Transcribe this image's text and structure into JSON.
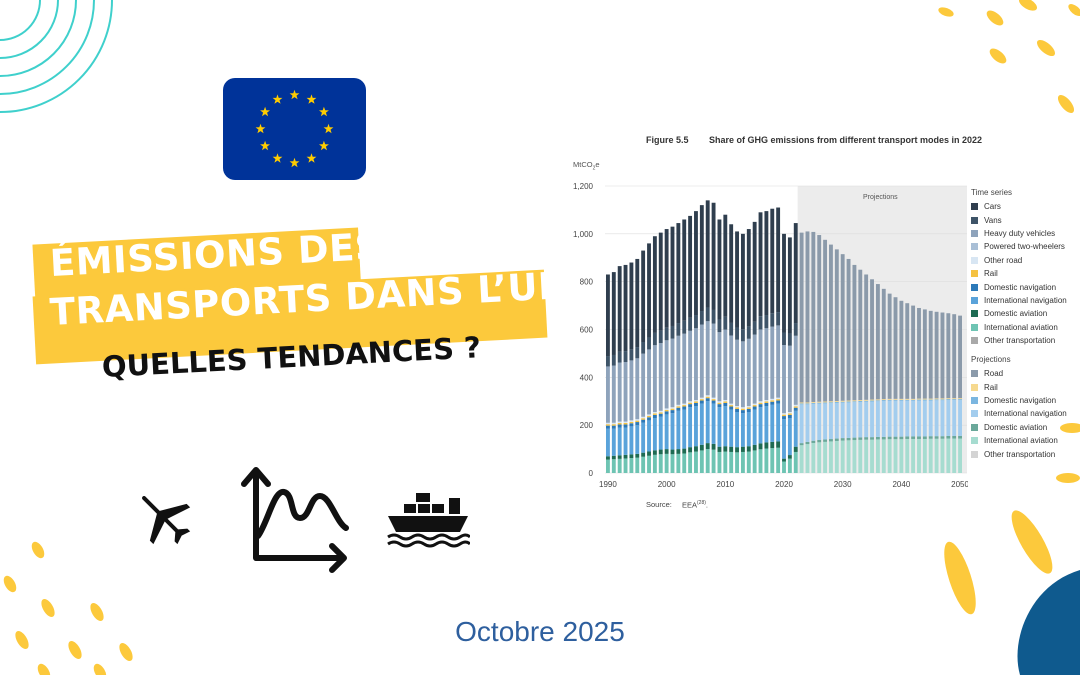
{
  "header": {
    "title_line1": "ÉMISSIONS DES",
    "title_line2": "TRANSPORTS DANS L’UE",
    "subtitle": "QUELLES TENDANCES ?"
  },
  "date": "Octobre 2025",
  "icons": [
    "eu-flag-icon",
    "airplane-icon",
    "trend-chart-icon",
    "cargo-ship-icon"
  ],
  "colors": {
    "accent_yellow": "#fcc93c",
    "deco_blue": "#0f5a8e",
    "teal_line": "#3fd0cc",
    "eu_blue": "#003399",
    "eu_star": "#ffcc00",
    "date_text": "#2e5f9e"
  },
  "chart_data": {
    "type": "bar",
    "figure_label": "Figure 5.5",
    "title": "Share of GHG emissions from different transport modes in 2022",
    "ylabel": "MtCO2e",
    "ylim": [
      0,
      1200
    ],
    "yticks": [
      "0",
      "200",
      "400",
      "600",
      "800",
      "1,000",
      "1,200"
    ],
    "xticks": [
      "1990",
      "2000",
      "2010",
      "2020",
      "2030",
      "2040",
      "2050"
    ],
    "projection_label": "Projections",
    "projection_start": 2023,
    "source_label": "Source:",
    "source_text": "EEA",
    "years": [
      1990,
      1991,
      1992,
      1993,
      1994,
      1995,
      1996,
      1997,
      1998,
      1999,
      2000,
      2001,
      2002,
      2003,
      2004,
      2005,
      2006,
      2007,
      2008,
      2009,
      2010,
      2011,
      2012,
      2013,
      2014,
      2015,
      2016,
      2017,
      2018,
      2019,
      2020,
      2021,
      2022,
      2023,
      2024,
      2025,
      2026,
      2027,
      2028,
      2029,
      2030,
      2031,
      2032,
      2033,
      2034,
      2035,
      2036,
      2037,
      2038,
      2039,
      2040,
      2041,
      2042,
      2043,
      2044,
      2045,
      2046,
      2047,
      2048,
      2049,
      2050
    ],
    "totals": [
      830,
      840,
      865,
      870,
      880,
      895,
      930,
      960,
      990,
      1005,
      1020,
      1030,
      1045,
      1060,
      1075,
      1095,
      1120,
      1140,
      1130,
      1060,
      1080,
      1040,
      1010,
      1000,
      1020,
      1050,
      1090,
      1095,
      1105,
      1110,
      1000,
      985,
      1045,
      1005,
      1010,
      1008,
      995,
      975,
      955,
      935,
      915,
      895,
      870,
      850,
      830,
      810,
      790,
      770,
      750,
      735,
      720,
      710,
      700,
      690,
      684,
      678,
      674,
      671,
      668,
      664,
      658
    ],
    "lower_block": [
      210,
      210,
      215,
      215,
      220,
      225,
      235,
      245,
      255,
      260,
      270,
      275,
      285,
      290,
      300,
      305,
      315,
      325,
      315,
      300,
      305,
      290,
      280,
      275,
      280,
      290,
      300,
      305,
      310,
      315,
      250,
      255,
      285,
      295,
      295,
      297,
      298,
      299,
      300,
      301,
      302,
      303,
      304,
      305,
      306,
      307,
      308,
      309,
      310,
      310,
      310,
      310,
      310,
      311,
      311,
      311,
      312,
      312,
      313,
      313,
      313
    ],
    "aviation_share": [
      70,
      72,
      74,
      76,
      78,
      80,
      85,
      90,
      95,
      98,
      100,
      98,
      100,
      102,
      108,
      112,
      118,
      125,
      122,
      110,
      112,
      110,
      108,
      110,
      112,
      118,
      124,
      128,
      130,
      132,
      60,
      75,
      110,
      125,
      130,
      135,
      138,
      140,
      142,
      144,
      146,
      147,
      148,
      149,
      150,
      150,
      151,
      151,
      152,
      152,
      152,
      153,
      153,
      153,
      153,
      154,
      154,
      154,
      155,
      155,
      155
    ],
    "legend_time_series_title": "Time series",
    "legend_time_series": [
      {
        "name": "Cars",
        "color": "#2f3e4e"
      },
      {
        "name": "Vans",
        "color": "#3e5468"
      },
      {
        "name": "Heavy duty vehicles",
        "color": "#8ea3bb"
      },
      {
        "name": "Powered two-wheelers",
        "color": "#a9bfd6"
      },
      {
        "name": "Other road",
        "color": "#d8e6f3"
      },
      {
        "name": "Rail",
        "color": "#f5c242"
      },
      {
        "name": "Domestic navigation",
        "color": "#2c79b8"
      },
      {
        "name": "International navigation",
        "color": "#5aa3da"
      },
      {
        "name": "Domestic aviation",
        "color": "#1e6b53"
      },
      {
        "name": "International aviation",
        "color": "#6ec4b3"
      },
      {
        "name": "Other transportation",
        "color": "#a9a9a9"
      }
    ],
    "legend_projections_title": "Projections",
    "legend_projections": [
      {
        "name": "Road",
        "color": "#8b9aaa"
      },
      {
        "name": "Rail",
        "color": "#f6d98f"
      },
      {
        "name": "Domestic navigation",
        "color": "#7bb6e0"
      },
      {
        "name": "International navigation",
        "color": "#a3cdee"
      },
      {
        "name": "Domestic aviation",
        "color": "#6aa89a"
      },
      {
        "name": "International aviation",
        "color": "#a6dcd0"
      },
      {
        "name": "Other transportation",
        "color": "#d4d4d4"
      }
    ]
  }
}
